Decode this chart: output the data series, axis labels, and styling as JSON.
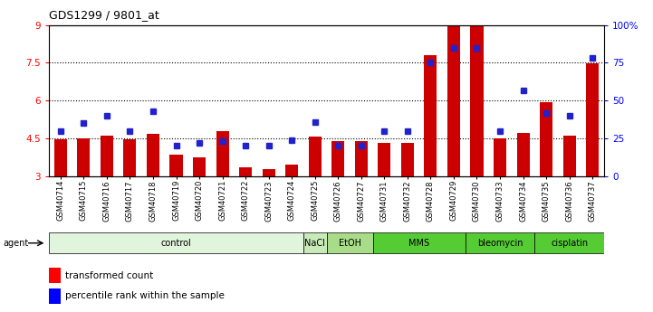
{
  "title": "GDS1299 / 9801_at",
  "samples": [
    "GSM40714",
    "GSM40715",
    "GSM40716",
    "GSM40717",
    "GSM40718",
    "GSM40719",
    "GSM40720",
    "GSM40721",
    "GSM40722",
    "GSM40723",
    "GSM40724",
    "GSM40725",
    "GSM40726",
    "GSM40727",
    "GSM40731",
    "GSM40732",
    "GSM40728",
    "GSM40729",
    "GSM40730",
    "GSM40733",
    "GSM40734",
    "GSM40735",
    "GSM40736",
    "GSM40737"
  ],
  "bar_values": [
    4.45,
    4.52,
    4.62,
    4.48,
    4.68,
    3.85,
    3.75,
    4.78,
    3.35,
    3.28,
    3.48,
    4.58,
    4.38,
    4.38,
    4.32,
    4.32,
    7.8,
    9.05,
    8.95,
    4.52,
    4.72,
    5.92,
    4.62,
    7.48
  ],
  "dot_values": [
    30,
    35,
    40,
    30,
    43,
    20,
    22,
    23,
    20,
    20,
    24,
    36,
    20,
    20,
    30,
    30,
    75,
    85,
    85,
    30,
    57,
    42,
    40,
    78
  ],
  "bar_color": "#cc0000",
  "dot_color": "#2222cc",
  "ylim_left": [
    3.0,
    9.0
  ],
  "ylim_right": [
    0,
    100
  ],
  "yticks_left": [
    3.0,
    4.5,
    6.0,
    7.5,
    9.0
  ],
  "ytick_labels_left": [
    "3",
    "4.5",
    "6",
    "7.5",
    "9"
  ],
  "yticks_right": [
    0,
    25,
    50,
    75,
    100
  ],
  "ytick_labels_right": [
    "0",
    "25",
    "50",
    "75",
    "100%"
  ],
  "hlines": [
    4.5,
    6.0,
    7.5
  ],
  "agent_groups": [
    {
      "label": "control",
      "start": 0,
      "end": 10,
      "color": "#e0f5db"
    },
    {
      "label": "NaCl",
      "start": 11,
      "end": 11,
      "color": "#c8eab8"
    },
    {
      "label": "EtOH",
      "start": 12,
      "end": 13,
      "color": "#a8dc88"
    },
    {
      "label": "MMS",
      "start": 14,
      "end": 17,
      "color": "#55cc33"
    },
    {
      "label": "bleomycin",
      "start": 18,
      "end": 20,
      "color": "#55cc33"
    },
    {
      "label": "cisplatin",
      "start": 21,
      "end": 23,
      "color": "#55cc33"
    }
  ],
  "bg_color": "#ffffff"
}
